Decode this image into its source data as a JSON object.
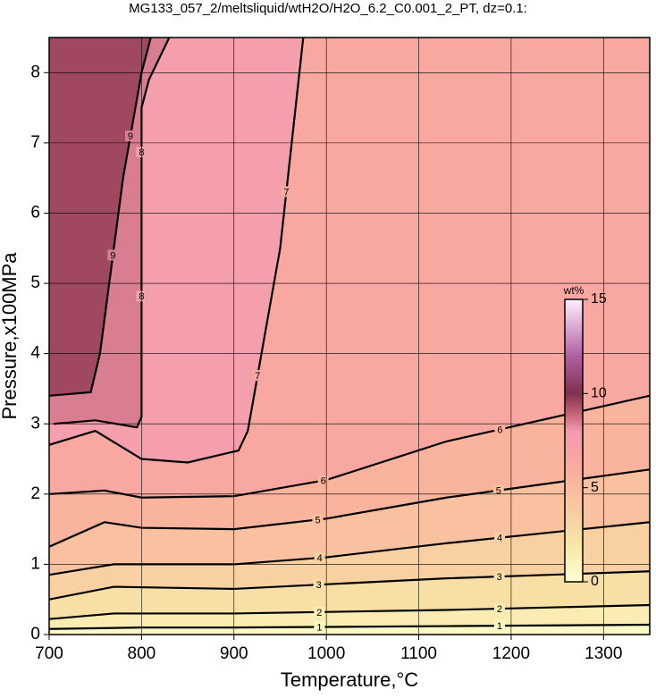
{
  "chart_data": {
    "type": "contour",
    "title": "MG133_057_2/meltsliquid/wtH2O/H2O_6.2_C0.001_2_PT, dz=0.1:",
    "x_label": "Temperature,°C",
    "y_label": "Pressure,x100MPa",
    "xlim": [
      700,
      1350
    ],
    "ylim": [
      0,
      8.5
    ],
    "xticks": [
      700,
      800,
      900,
      1000,
      1100,
      1200,
      1300
    ],
    "yticks": [
      0,
      1,
      2,
      3,
      4,
      5,
      6,
      7,
      8
    ],
    "grid": true,
    "contours": [
      {
        "level": 1,
        "x": [
          700,
          800,
          900,
          1130,
          1350
        ],
        "y": [
          0.08,
          0.1,
          0.1,
          0.12,
          0.14
        ]
      },
      {
        "level": 2,
        "x": [
          700,
          770,
          900,
          1130,
          1350
        ],
        "y": [
          0.22,
          0.3,
          0.3,
          0.35,
          0.42
        ]
      },
      {
        "level": 3,
        "x": [
          700,
          770,
          900,
          1130,
          1350
        ],
        "y": [
          0.5,
          0.68,
          0.65,
          0.8,
          0.9
        ]
      },
      {
        "level": 4,
        "x": [
          700,
          770,
          900,
          1000,
          1130,
          1350
        ],
        "y": [
          0.85,
          1.0,
          1.0,
          1.1,
          1.3,
          1.6
        ]
      },
      {
        "level": 5,
        "x": [
          700,
          760,
          800,
          900,
          1000,
          1130,
          1350
        ],
        "y": [
          1.25,
          1.6,
          1.52,
          1.5,
          1.65,
          1.95,
          2.35
        ]
      },
      {
        "level": 6,
        "x": [
          700,
          760,
          800,
          900,
          1000,
          1130,
          1350
        ],
        "y": [
          2.0,
          2.05,
          1.95,
          1.97,
          2.2,
          2.75,
          3.4
        ]
      },
      {
        "level": 7,
        "x": [
          700,
          750,
          800,
          850,
          905,
          915,
          950,
          975
        ],
        "y": [
          2.7,
          2.9,
          2.5,
          2.45,
          2.62,
          2.9,
          5.5,
          8.5
        ]
      },
      {
        "level": 8,
        "x": [
          705,
          750,
          795,
          800,
          800,
          808,
          830
        ],
        "y": [
          3.0,
          3.05,
          2.95,
          3.1,
          7.5,
          7.9,
          8.5
        ]
      },
      {
        "level": 9,
        "x": [
          700,
          745,
          755,
          780,
          800,
          810
        ],
        "y": [
          3.4,
          3.45,
          4.0,
          6.5,
          8.0,
          8.5
        ]
      }
    ],
    "colorbar": {
      "label": "wt%",
      "lim": [
        0,
        15
      ],
      "ticks": [
        0,
        5,
        10,
        15
      ]
    },
    "colormap": [
      {
        "value": 0,
        "color": "#ffffd0"
      },
      {
        "value": 2,
        "color": "#f8e6a8"
      },
      {
        "value": 4,
        "color": "#f8c8a0"
      },
      {
        "value": 6,
        "color": "#fbac9c"
      },
      {
        "value": 8,
        "color": "#f29ab0"
      },
      {
        "value": 9,
        "color": "#c06070"
      },
      {
        "value": 10,
        "color": "#803050"
      },
      {
        "value": 12,
        "color": "#b060a0"
      },
      {
        "value": 15,
        "color": "#fff0ff"
      }
    ]
  }
}
